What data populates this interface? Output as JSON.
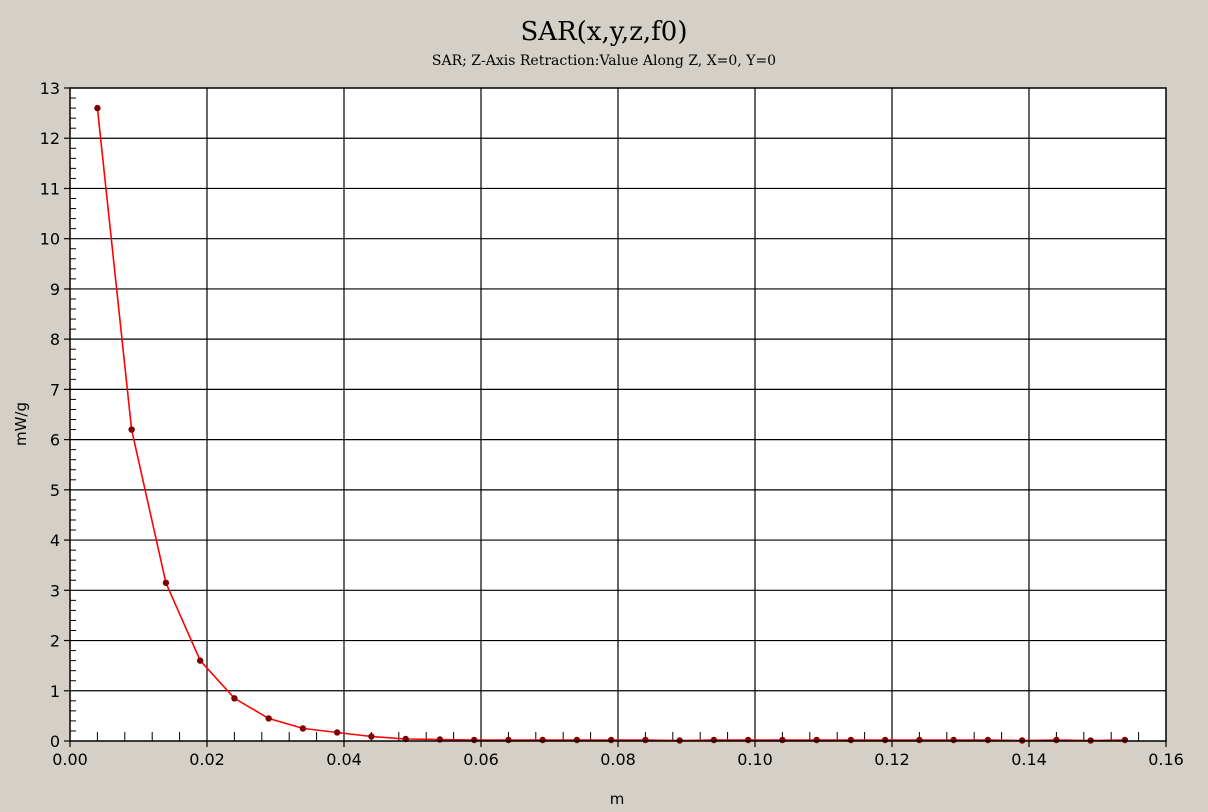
{
  "window": {
    "background_color": "#d4d0c8",
    "plot_background_color": "#ffffff",
    "grid_color": "#000000"
  },
  "chart_data": {
    "type": "line",
    "title": "SAR(x,y,z,f0)",
    "subtitle": "SAR; Z-Axis Retraction:Value Along Z, X=0, Y=0",
    "xlabel": "m",
    "ylabel": "mW/g",
    "xlim": [
      0.0,
      0.16
    ],
    "ylim": [
      0,
      13
    ],
    "grid": true,
    "x_ticks": [
      0.0,
      0.02,
      0.04,
      0.06,
      0.08,
      0.1,
      0.12,
      0.14,
      0.16
    ],
    "x_tick_labels": [
      "0.00",
      "0.02",
      "0.04",
      "0.06",
      "0.08",
      "0.10",
      "0.12",
      "0.14",
      "0.16"
    ],
    "y_ticks": [
      0,
      1,
      2,
      3,
      4,
      5,
      6,
      7,
      8,
      9,
      10,
      11,
      12,
      13
    ],
    "y_tick_labels": [
      "0",
      "1",
      "2",
      "3",
      "4",
      "5",
      "6",
      "7",
      "8",
      "9",
      "10",
      "11",
      "12",
      "13"
    ],
    "line_color": "#ff0000",
    "marker_color": "#800000",
    "series": [
      {
        "x": [
          0.004,
          0.009,
          0.014,
          0.019,
          0.024,
          0.029,
          0.034,
          0.039,
          0.044,
          0.049,
          0.054,
          0.059,
          0.064,
          0.069,
          0.074,
          0.079,
          0.084,
          0.089,
          0.094,
          0.099,
          0.104,
          0.109,
          0.114,
          0.119,
          0.124,
          0.129,
          0.134,
          0.139,
          0.144,
          0.149,
          0.154
        ],
        "y": [
          12.6,
          6.2,
          3.15,
          1.6,
          0.85,
          0.45,
          0.25,
          0.17,
          0.09,
          0.04,
          0.03,
          0.02,
          0.02,
          0.02,
          0.02,
          0.02,
          0.02,
          0.01,
          0.02,
          0.02,
          0.02,
          0.02,
          0.02,
          0.02,
          0.02,
          0.02,
          0.02,
          0.01,
          0.02,
          0.01,
          0.02
        ]
      }
    ]
  }
}
